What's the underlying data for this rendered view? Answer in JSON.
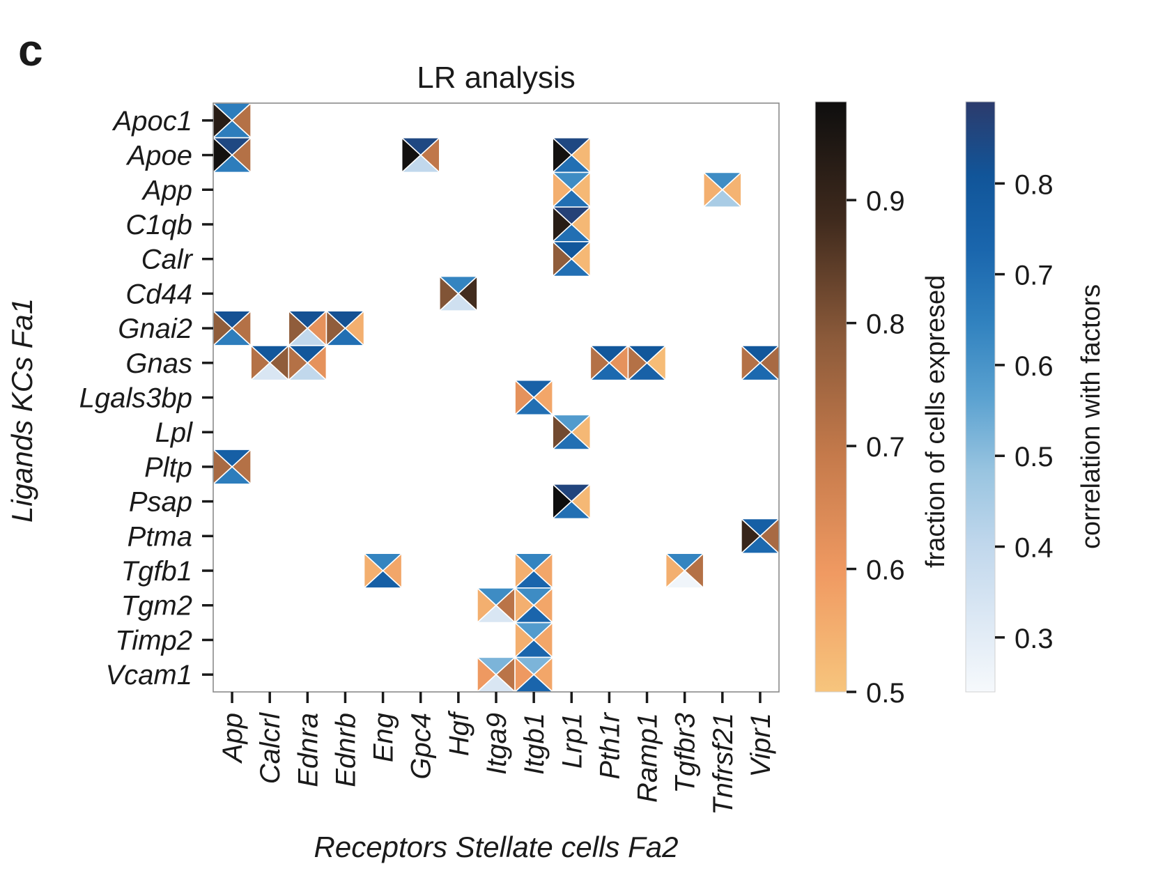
{
  "panel_letter": "c",
  "chart_data": {
    "type": "heatmap",
    "subtype": "quad-triangle heatmap (left: ligand fraction, right: receptor fraction, top: ligand correlation, bottom: receptor correlation)",
    "title": "LR analysis",
    "xlabel": "Receptors Stellate cells Fa2",
    "ylabel": "Ligands KCs Fa1",
    "x_categories": [
      "App",
      "Calcrl",
      "Ednra",
      "Ednrb",
      "Eng",
      "Gpc4",
      "Hgf",
      "Itga9",
      "Itgb1",
      "Lrp1",
      "Pth1r",
      "Ramp1",
      "Tgfbr3",
      "Tnfrsf21",
      "Vipr1"
    ],
    "y_categories": [
      "Apoc1",
      "Apoe",
      "App",
      "C1qb",
      "Calr",
      "Cd44",
      "Gnai2",
      "Gnas",
      "Lgals3bp",
      "Lpl",
      "Pltp",
      "Psap",
      "Ptma",
      "Tgfb1",
      "Tgm2",
      "Timp2",
      "Vcam1"
    ],
    "cells": [
      {
        "ligand": "Apoc1",
        "receptor": "App",
        "ligand_fraction": 0.93,
        "receptor_fraction": 0.72,
        "ligand_corr": 0.66,
        "receptor_corr": 0.66
      },
      {
        "ligand": "Apoe",
        "receptor": "App",
        "ligand_fraction": 0.97,
        "receptor_fraction": 0.72,
        "ligand_corr": 0.85,
        "receptor_corr": 0.66
      },
      {
        "ligand": "Apoe",
        "receptor": "Gpc4",
        "ligand_fraction": 0.97,
        "receptor_fraction": 0.7,
        "ligand_corr": 0.85,
        "receptor_corr": 0.4
      },
      {
        "ligand": "Apoe",
        "receptor": "Lrp1",
        "ligand_fraction": 0.97,
        "receptor_fraction": 0.53,
        "ligand_corr": 0.85,
        "receptor_corr": 0.7
      },
      {
        "ligand": "App",
        "receptor": "Lrp1",
        "ligand_fraction": 0.55,
        "receptor_fraction": 0.53,
        "ligand_corr": 0.62,
        "receptor_corr": 0.7
      },
      {
        "ligand": "App",
        "receptor": "Tnfrsf21",
        "ligand_fraction": 0.55,
        "receptor_fraction": 0.54,
        "ligand_corr": 0.62,
        "receptor_corr": 0.45
      },
      {
        "ligand": "C1qb",
        "receptor": "Lrp1",
        "ligand_fraction": 0.93,
        "receptor_fraction": 0.53,
        "ligand_corr": 0.87,
        "receptor_corr": 0.7
      },
      {
        "ligand": "Calr",
        "receptor": "Lrp1",
        "ligand_fraction": 0.78,
        "receptor_fraction": 0.53,
        "ligand_corr": 0.8,
        "receptor_corr": 0.7
      },
      {
        "ligand": "Cd44",
        "receptor": "Hgf",
        "ligand_fraction": 0.8,
        "receptor_fraction": 0.88,
        "ligand_corr": 0.64,
        "receptor_corr": 0.36
      },
      {
        "ligand": "Gnai2",
        "receptor": "App",
        "ligand_fraction": 0.78,
        "receptor_fraction": 0.72,
        "ligand_corr": 0.82,
        "receptor_corr": 0.66
      },
      {
        "ligand": "Gnai2",
        "receptor": "Ednra",
        "ligand_fraction": 0.78,
        "receptor_fraction": 0.62,
        "ligand_corr": 0.82,
        "receptor_corr": 0.4
      },
      {
        "ligand": "Gnai2",
        "receptor": "Ednrb",
        "ligand_fraction": 0.78,
        "receptor_fraction": 0.55,
        "ligand_corr": 0.82,
        "receptor_corr": 0.7
      },
      {
        "ligand": "Gnas",
        "receptor": "Calcrl",
        "ligand_fraction": 0.72,
        "receptor_fraction": 0.78,
        "ligand_corr": 0.8,
        "receptor_corr": 0.33
      },
      {
        "ligand": "Gnas",
        "receptor": "Ednra",
        "ligand_fraction": 0.72,
        "receptor_fraction": 0.62,
        "ligand_corr": 0.8,
        "receptor_corr": 0.4
      },
      {
        "ligand": "Gnas",
        "receptor": "Pth1r",
        "ligand_fraction": 0.72,
        "receptor_fraction": 0.62,
        "ligand_corr": 0.8,
        "receptor_corr": 0.72
      },
      {
        "ligand": "Gnas",
        "receptor": "Ramp1",
        "ligand_fraction": 0.72,
        "receptor_fraction": 0.52,
        "ligand_corr": 0.8,
        "receptor_corr": 0.75
      },
      {
        "ligand": "Gnas",
        "receptor": "Vipr1",
        "ligand_fraction": 0.72,
        "receptor_fraction": 0.74,
        "ligand_corr": 0.8,
        "receptor_corr": 0.72
      },
      {
        "ligand": "Lgals3bp",
        "receptor": "Itgb1",
        "ligand_fraction": 0.62,
        "receptor_fraction": 0.57,
        "ligand_corr": 0.75,
        "receptor_corr": 0.7
      },
      {
        "ligand": "Lpl",
        "receptor": "Lrp1",
        "ligand_fraction": 0.82,
        "receptor_fraction": 0.53,
        "ligand_corr": 0.58,
        "receptor_corr": 0.7
      },
      {
        "ligand": "Pltp",
        "receptor": "App",
        "ligand_fraction": 0.74,
        "receptor_fraction": 0.72,
        "ligand_corr": 0.76,
        "receptor_corr": 0.66
      },
      {
        "ligand": "Psap",
        "receptor": "Lrp1",
        "ligand_fraction": 0.98,
        "receptor_fraction": 0.53,
        "ligand_corr": 0.86,
        "receptor_corr": 0.7
      },
      {
        "ligand": "Ptma",
        "receptor": "Vipr1",
        "ligand_fraction": 0.9,
        "receptor_fraction": 0.74,
        "ligand_corr": 0.76,
        "receptor_corr": 0.72
      },
      {
        "ligand": "Tgfb1",
        "receptor": "Eng",
        "ligand_fraction": 0.55,
        "receptor_fraction": 0.57,
        "ligand_corr": 0.64,
        "receptor_corr": 0.76
      },
      {
        "ligand": "Tgfb1",
        "receptor": "Itgb1",
        "ligand_fraction": 0.55,
        "receptor_fraction": 0.57,
        "ligand_corr": 0.64,
        "receptor_corr": 0.73
      },
      {
        "ligand": "Tgfb1",
        "receptor": "Tgfbr3",
        "ligand_fraction": 0.55,
        "receptor_fraction": 0.72,
        "ligand_corr": 0.64,
        "receptor_corr": 0.26
      },
      {
        "ligand": "Tgm2",
        "receptor": "Itga9",
        "ligand_fraction": 0.55,
        "receptor_fraction": 0.71,
        "ligand_corr": 0.62,
        "receptor_corr": 0.33
      },
      {
        "ligand": "Tgm2",
        "receptor": "Itgb1",
        "ligand_fraction": 0.55,
        "receptor_fraction": 0.57,
        "ligand_corr": 0.62,
        "receptor_corr": 0.73
      },
      {
        "ligand": "Timp2",
        "receptor": "Itgb1",
        "ligand_fraction": 0.55,
        "receptor_fraction": 0.57,
        "ligand_corr": 0.58,
        "receptor_corr": 0.73
      },
      {
        "ligand": "Vcam1",
        "receptor": "Itga9",
        "ligand_fraction": 0.6,
        "receptor_fraction": 0.71,
        "ligand_corr": 0.52,
        "receptor_corr": 0.33
      },
      {
        "ligand": "Vcam1",
        "receptor": "Itgb1",
        "ligand_fraction": 0.6,
        "receptor_fraction": 0.57,
        "ligand_corr": 0.52,
        "receptor_corr": 0.73
      }
    ],
    "colorbars": [
      {
        "name": "fraction",
        "label": "fraction of cells expresed",
        "range": [
          0.5,
          0.98
        ],
        "ticks": [
          0.5,
          0.6,
          0.7,
          0.8,
          0.9
        ],
        "tick_labels": [
          "0.5",
          "0.6",
          "0.7",
          "0.8",
          "0.9"
        ],
        "colors": [
          "#f7c57d",
          "#f09a62",
          "#c57a4b",
          "#8b5a3a",
          "#3f2a1d",
          "#0e0e0e"
        ]
      },
      {
        "name": "correlation",
        "label": "correlation with factors",
        "range": [
          0.24,
          0.89
        ],
        "ticks": [
          0.3,
          0.4,
          0.5,
          0.6,
          0.7,
          0.8
        ],
        "tick_labels": [
          "0.3",
          "0.4",
          "0.5",
          "0.6",
          "0.7",
          "0.8"
        ],
        "colors": [
          "#f6f9fc",
          "#dce8f4",
          "#c0d7ec",
          "#98c4e0",
          "#5aa1d0",
          "#3182bf",
          "#1a66ad",
          "#115599",
          "#2c3b6c"
        ]
      }
    ],
    "grid": false
  }
}
